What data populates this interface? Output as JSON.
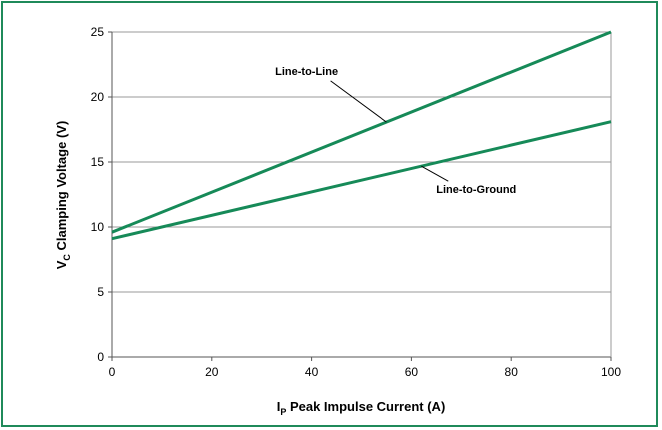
{
  "chart_data": {
    "type": "line",
    "xlim": [
      0,
      100
    ],
    "ylim": [
      0,
      25
    ],
    "x_ticks": [
      "0",
      "20",
      "40",
      "60",
      "80",
      "100"
    ],
    "y_ticks": [
      "0",
      "5",
      "10",
      "15",
      "20",
      "25"
    ],
    "xlabel_main": "I",
    "xlabel_sub": "P",
    "xlabel_rest": " Peak Impulse Current (A)",
    "ylabel_main": "V",
    "ylabel_sub": "C",
    "ylabel_rest": " Clamping Voltage (V)",
    "grid": "horizontal",
    "series": [
      {
        "name": "Line-to-Line",
        "x": [
          0,
          100
        ],
        "y": [
          9.6,
          25.0
        ]
      },
      {
        "name": "Line-to-Ground",
        "x": [
          0,
          100
        ],
        "y": [
          9.1,
          18.1
        ]
      }
    ],
    "annotations": [
      {
        "text": "Line-to-Line",
        "series": 0,
        "at_x": 55,
        "label_x": 39,
        "label_y": 21.7
      },
      {
        "text": "Line-to-Ground",
        "series": 1,
        "at_x": 62,
        "label_x": 73,
        "label_y": 12.6
      }
    ],
    "colors": {
      "line": "#168a58",
      "frame": "#1f8a5a",
      "grid": "#999999"
    }
  }
}
